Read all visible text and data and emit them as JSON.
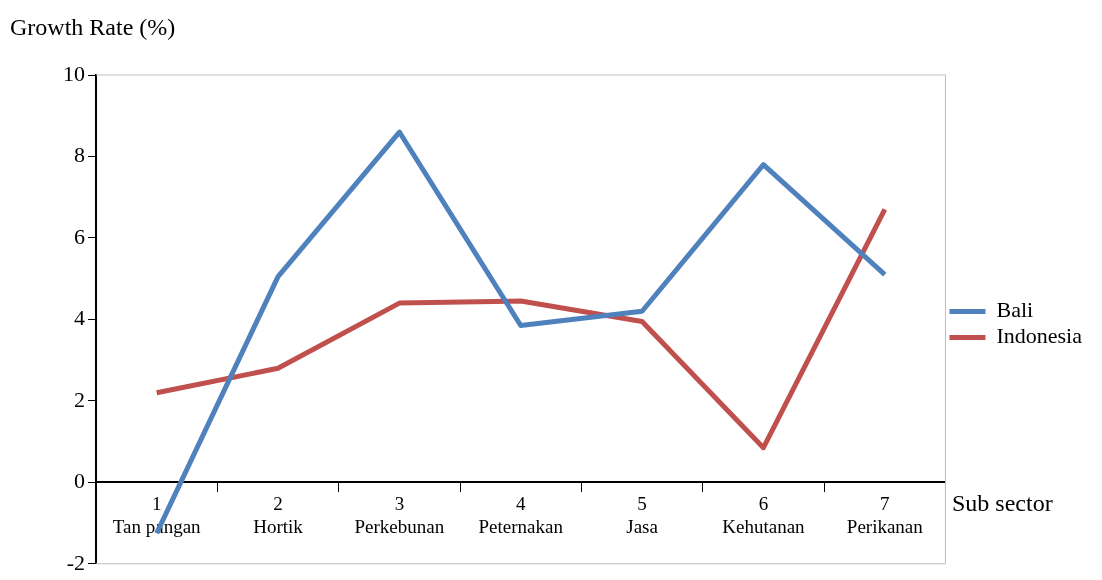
{
  "chart_data": {
    "type": "line",
    "ylabel": "Growth Rate (%)",
    "xlabel": "Sub sector",
    "categories": [
      "1\nTan pangan",
      "2\nHortik",
      "3\nPerkebunan",
      "4\nPeternakan",
      "5\nJasa",
      "6\nKehutanan",
      "7\nPerikanan"
    ],
    "series": [
      {
        "name": "Bali",
        "color": "#4f81bd",
        "values": [
          -1.25,
          5.05,
          8.6,
          3.85,
          4.2,
          7.8,
          5.1
        ]
      },
      {
        "name": "Indonesia",
        "color": "#c0504d",
        "values": [
          2.2,
          2.8,
          4.4,
          4.45,
          3.95,
          0.85,
          6.7
        ]
      }
    ],
    "ylim": [
      -2,
      10
    ],
    "yticks": [
      -2,
      0,
      2,
      4,
      6,
      8,
      10
    ],
    "grid": false,
    "legend": "right",
    "marker": "none",
    "line_style": "solid"
  }
}
